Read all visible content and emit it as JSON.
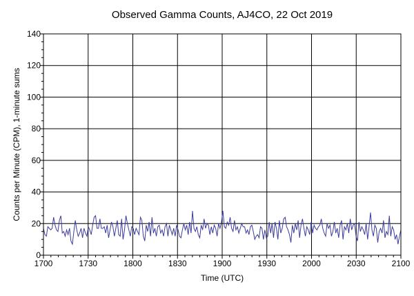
{
  "chart_data": {
    "type": "line",
    "title": "Observed Gamma Counts, AJ4CO, 22 Oct 2019",
    "xlabel": "Time (UTC)",
    "ylabel": "Counts per Minute (CPM), 1-minute sums",
    "xlim": [
      0,
      240
    ],
    "ylim": [
      0,
      140
    ],
    "x_ticks": [
      {
        "value": 0,
        "label": "1700"
      },
      {
        "value": 30,
        "label": "1730"
      },
      {
        "value": 60,
        "label": "1800"
      },
      {
        "value": 90,
        "label": "1830"
      },
      {
        "value": 120,
        "label": "1900"
      },
      {
        "value": 150,
        "label": "1930"
      },
      {
        "value": 180,
        "label": "2000"
      },
      {
        "value": 210,
        "label": "2030"
      },
      {
        "value": 240,
        "label": "2100"
      }
    ],
    "y_ticks": [
      {
        "value": 0,
        "label": "0"
      },
      {
        "value": 20,
        "label": "20"
      },
      {
        "value": 40,
        "label": "40"
      },
      {
        "value": 60,
        "label": "60"
      },
      {
        "value": 80,
        "label": "80"
      },
      {
        "value": 100,
        "label": "100"
      },
      {
        "value": 120,
        "label": "120"
      },
      {
        "value": 140,
        "label": "140"
      }
    ],
    "grid": true,
    "series": [
      {
        "color": "#3a3aa0",
        "values": [
          17,
          13,
          12,
          18,
          17,
          16,
          17,
          24,
          19,
          16,
          15,
          22,
          25,
          14,
          15,
          12,
          16,
          13,
          17,
          9,
          7,
          15,
          22,
          16,
          12,
          14,
          17,
          11,
          17,
          14,
          12,
          18,
          16,
          13,
          19,
          24,
          25,
          17,
          17,
          23,
          17,
          17,
          18,
          14,
          19,
          11,
          16,
          21,
          18,
          12,
          17,
          22,
          13,
          12,
          23,
          10,
          16,
          25,
          20,
          16,
          12,
          18,
          17,
          13,
          17,
          15,
          13,
          24,
          22,
          12,
          9,
          19,
          15,
          21,
          12,
          24,
          14,
          17,
          12,
          18,
          19,
          14,
          16,
          12,
          18,
          20,
          12,
          19,
          16,
          13,
          17,
          12,
          19,
          16,
          12,
          11,
          16,
          20,
          16,
          19,
          13,
          21,
          14,
          28,
          17,
          15,
          18,
          13,
          11,
          19,
          16,
          23,
          17,
          20,
          19,
          13,
          18,
          14,
          19,
          17,
          12,
          20,
          17,
          21,
          28,
          18,
          17,
          21,
          19,
          24,
          17,
          15,
          22,
          16,
          18,
          14,
          17,
          20,
          18,
          18,
          14,
          16,
          13,
          18,
          19,
          15,
          10,
          12,
          13,
          11,
          18,
          17,
          10,
          16,
          11,
          12,
          21,
          14,
          20,
          11,
          21,
          17,
          10,
          22,
          14,
          17,
          23,
          24,
          18,
          16,
          13,
          8,
          19,
          14,
          20,
          16,
          22,
          11,
          19,
          23,
          17,
          12,
          18,
          16,
          13,
          21,
          14,
          19,
          17,
          16,
          18,
          19,
          23,
          17,
          14,
          12,
          20,
          17,
          19,
          12,
          15,
          21,
          14,
          17,
          11,
          19,
          22,
          10,
          18,
          16,
          20,
          14,
          23,
          16,
          19,
          20,
          12,
          9,
          21,
          15,
          18,
          16,
          13,
          20,
          10,
          18,
          27,
          16,
          12,
          19,
          17,
          8,
          15,
          17,
          14,
          22,
          11,
          15,
          13,
          25,
          12,
          18,
          16,
          10,
          13,
          7,
          12,
          16
        ]
      }
    ]
  }
}
